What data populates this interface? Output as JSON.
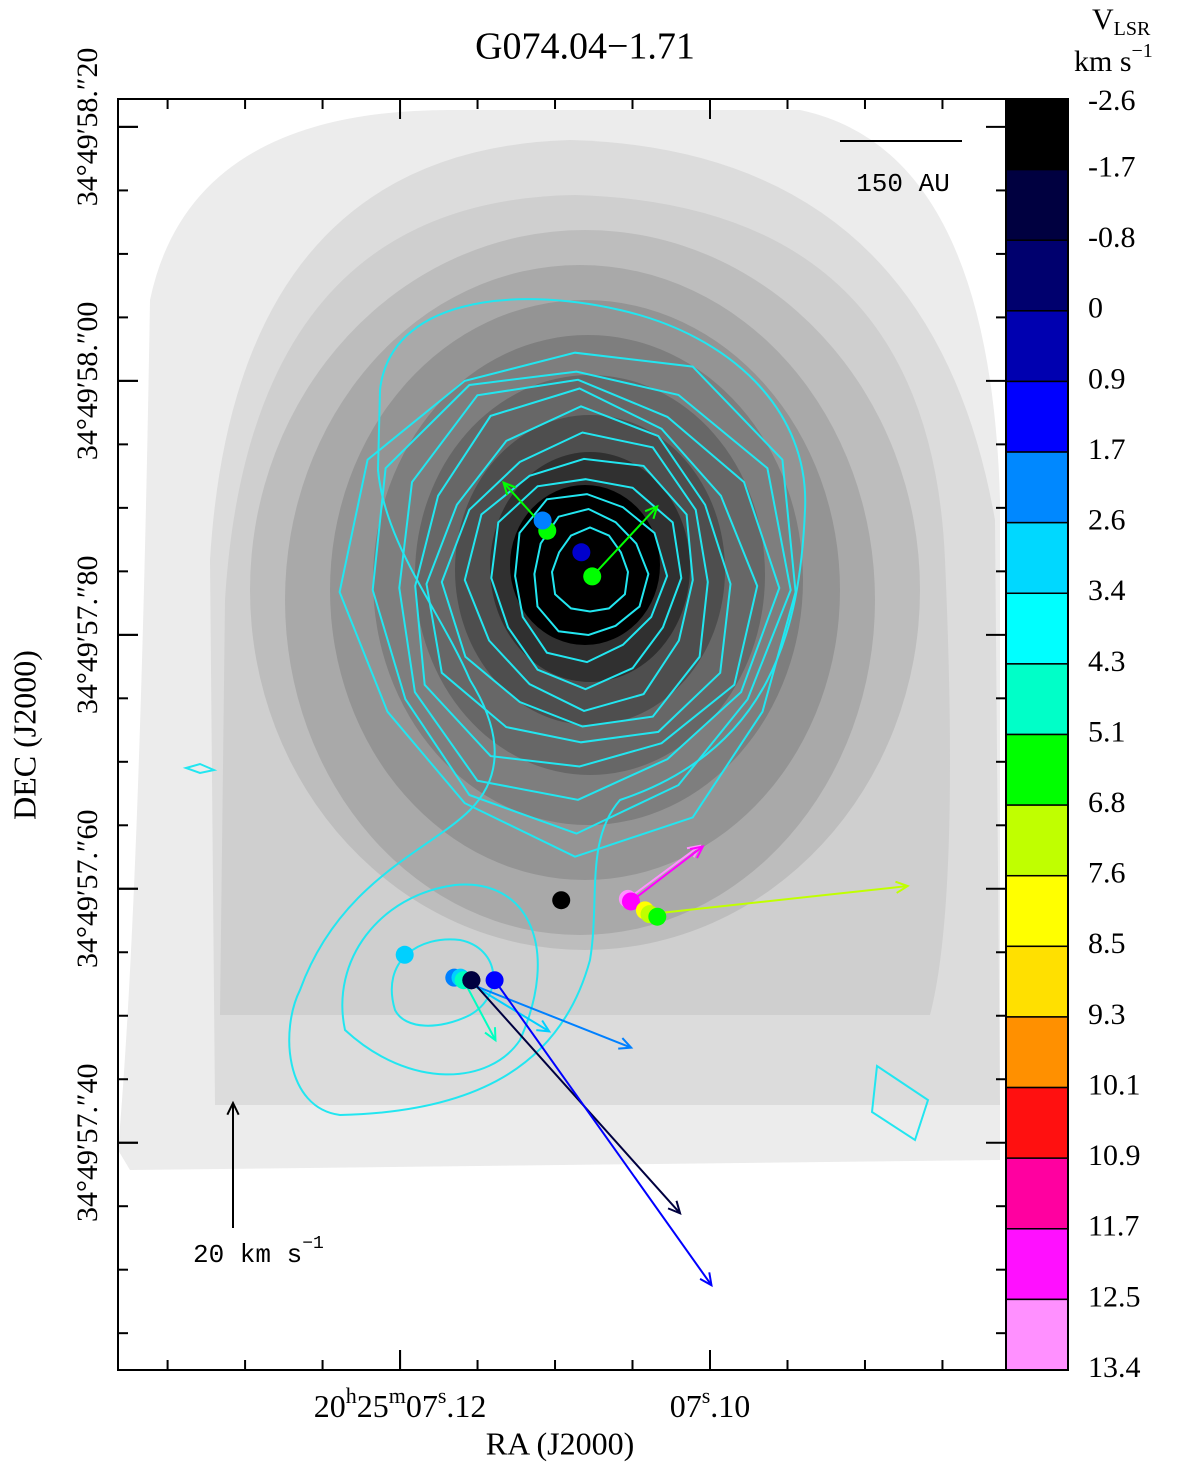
{
  "chart_data": {
    "type": "scatter",
    "title": "G074.04−1.71",
    "x_label": "RA (J2000)",
    "y_label": "DEC (J2000)",
    "xlim": [
      7.1382,
      7.0809
    ],
    "ylim": [
      57.221,
      58.222
    ],
    "xticks": [
      {
        "value": 7.12,
        "label": "20h25m07s.12"
      },
      {
        "value": 7.1,
        "label": "07s.10"
      }
    ],
    "yticks": [
      {
        "value": 58.2,
        "label": "34°49′58.″20"
      },
      {
        "value": 58.0,
        "label": "34°49′58.″00"
      },
      {
        "value": 57.8,
        "label": "34°49′57.″80"
      },
      {
        "value": 57.6,
        "label": "34°49′57.″60"
      },
      {
        "value": 57.4,
        "label": "34°49′57.″40"
      }
    ],
    "spots": [
      {
        "x": 7.1105,
        "y": 57.882,
        "color": "#00ff00",
        "vx": -7.0,
        "vy": 7.7
      },
      {
        "x": 7.1108,
        "y": 57.89,
        "color": "#0080ff"
      },
      {
        "x": 7.1083,
        "y": 57.865,
        "color": "#0000cc"
      },
      {
        "x": 7.1076,
        "y": 57.846,
        "color": "#00ff00",
        "vx": 10.4,
        "vy": 11.2
      },
      {
        "x": 7.1096,
        "y": 57.591,
        "color": "#000000"
      },
      {
        "x": 7.1053,
        "y": 57.592,
        "color": "#ff90ff",
        "vx": 11.5,
        "vy": 8.5
      },
      {
        "x": 7.1051,
        "y": 57.59,
        "color": "#ff00ff",
        "vx": 11.5,
        "vy": 8.8
      },
      {
        "x": 7.1042,
        "y": 57.583,
        "color": "#ffff00"
      },
      {
        "x": 7.1039,
        "y": 57.58,
        "color": "#c0ff00",
        "vx": 41.3,
        "vy": 4.5
      },
      {
        "x": 7.1034,
        "y": 57.578,
        "color": "#00ff00"
      },
      {
        "x": 7.1197,
        "y": 57.548,
        "color": "#00d0ff"
      },
      {
        "x": 7.1165,
        "y": 57.53,
        "color": "#0080ff",
        "vx": 28.3,
        "vy": -11.2
      },
      {
        "x": 7.1161,
        "y": 57.53,
        "color": "#00d0ff",
        "vx": 14.2,
        "vy": -8.6
      },
      {
        "x": 7.1159,
        "y": 57.528,
        "color": "#00ffc0",
        "vx": 5.1,
        "vy": -9.6
      },
      {
        "x": 7.1154,
        "y": 57.528,
        "color": "#000000"
      },
      {
        "x": 7.1154,
        "y": 57.528,
        "color": "#000040",
        "vx": 33.4,
        "vy": -37.3
      },
      {
        "x": 7.1139,
        "y": 57.528,
        "color": "#0000ff",
        "vx": 34.7,
        "vy": -48.8
      }
    ],
    "colorbar": {
      "title": "V",
      "title_sub": "LSR",
      "unit": "km s",
      "unit_sup": "−1",
      "levels": [
        -2.6,
        -1.7,
        -0.8,
        0,
        0.9,
        1.7,
        2.6,
        3.4,
        4.3,
        5.1,
        6.8,
        7.6,
        8.5,
        9.3,
        10.1,
        10.9,
        11.7,
        12.5,
        13.4
      ],
      "colors": [
        "#000000",
        "#000040",
        "#00006e",
        "#0000b0",
        "#0000ff",
        "#0088ff",
        "#00d8ff",
        "#00ffff",
        "#00ffc8",
        "#00ff00",
        "#c0ff00",
        "#ffff00",
        "#ffe000",
        "#ff9000",
        "#ff1010",
        "#ff00a0",
        "#ff10ff",
        "#ff90ff"
      ]
    },
    "scale_bar": "150 AU",
    "velocity_key": {
      "value": 20,
      "label": "20 km s",
      "label_sup": "−1"
    }
  }
}
